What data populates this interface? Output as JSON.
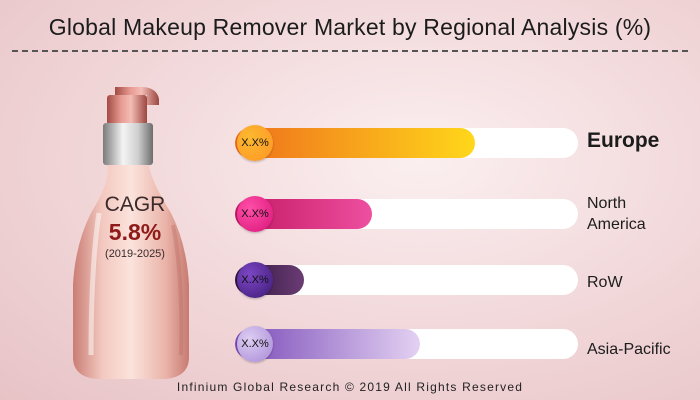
{
  "title": "Global Makeup Remover Market by Regional Analysis (%)",
  "cagr": {
    "label": "CAGR",
    "value": "5.8%",
    "period": "(2019-2025)"
  },
  "footer": "Infinium Global Research © 2019 All Rights Reserved",
  "chart_data": {
    "type": "bar",
    "orientation": "horizontal",
    "categories": [
      "Europe",
      "North America",
      "RoW",
      "Asia-Pacific"
    ],
    "values": [
      70,
      40,
      20,
      54
    ],
    "data_labels": [
      "X.X%",
      "X.X%",
      "X.X%",
      "X.X%"
    ],
    "xlim": [
      0,
      100
    ],
    "grid": false,
    "colors": [
      [
        "#ef6f1d",
        "#ffd71a"
      ],
      [
        "#c21862",
        "#ee4fa0"
      ],
      [
        "#30143d",
        "#6a3c74"
      ],
      [
        "#7a4bb8",
        "#e3d1f2"
      ]
    ],
    "badge_colors": [
      [
        "#fbb92f",
        "#ff9526"
      ],
      [
        "#ff4fa7",
        "#d9157a"
      ],
      [
        "#7d47c5",
        "#3c1a74"
      ],
      [
        "#ddcdf2",
        "#a88ad6"
      ]
    ]
  }
}
